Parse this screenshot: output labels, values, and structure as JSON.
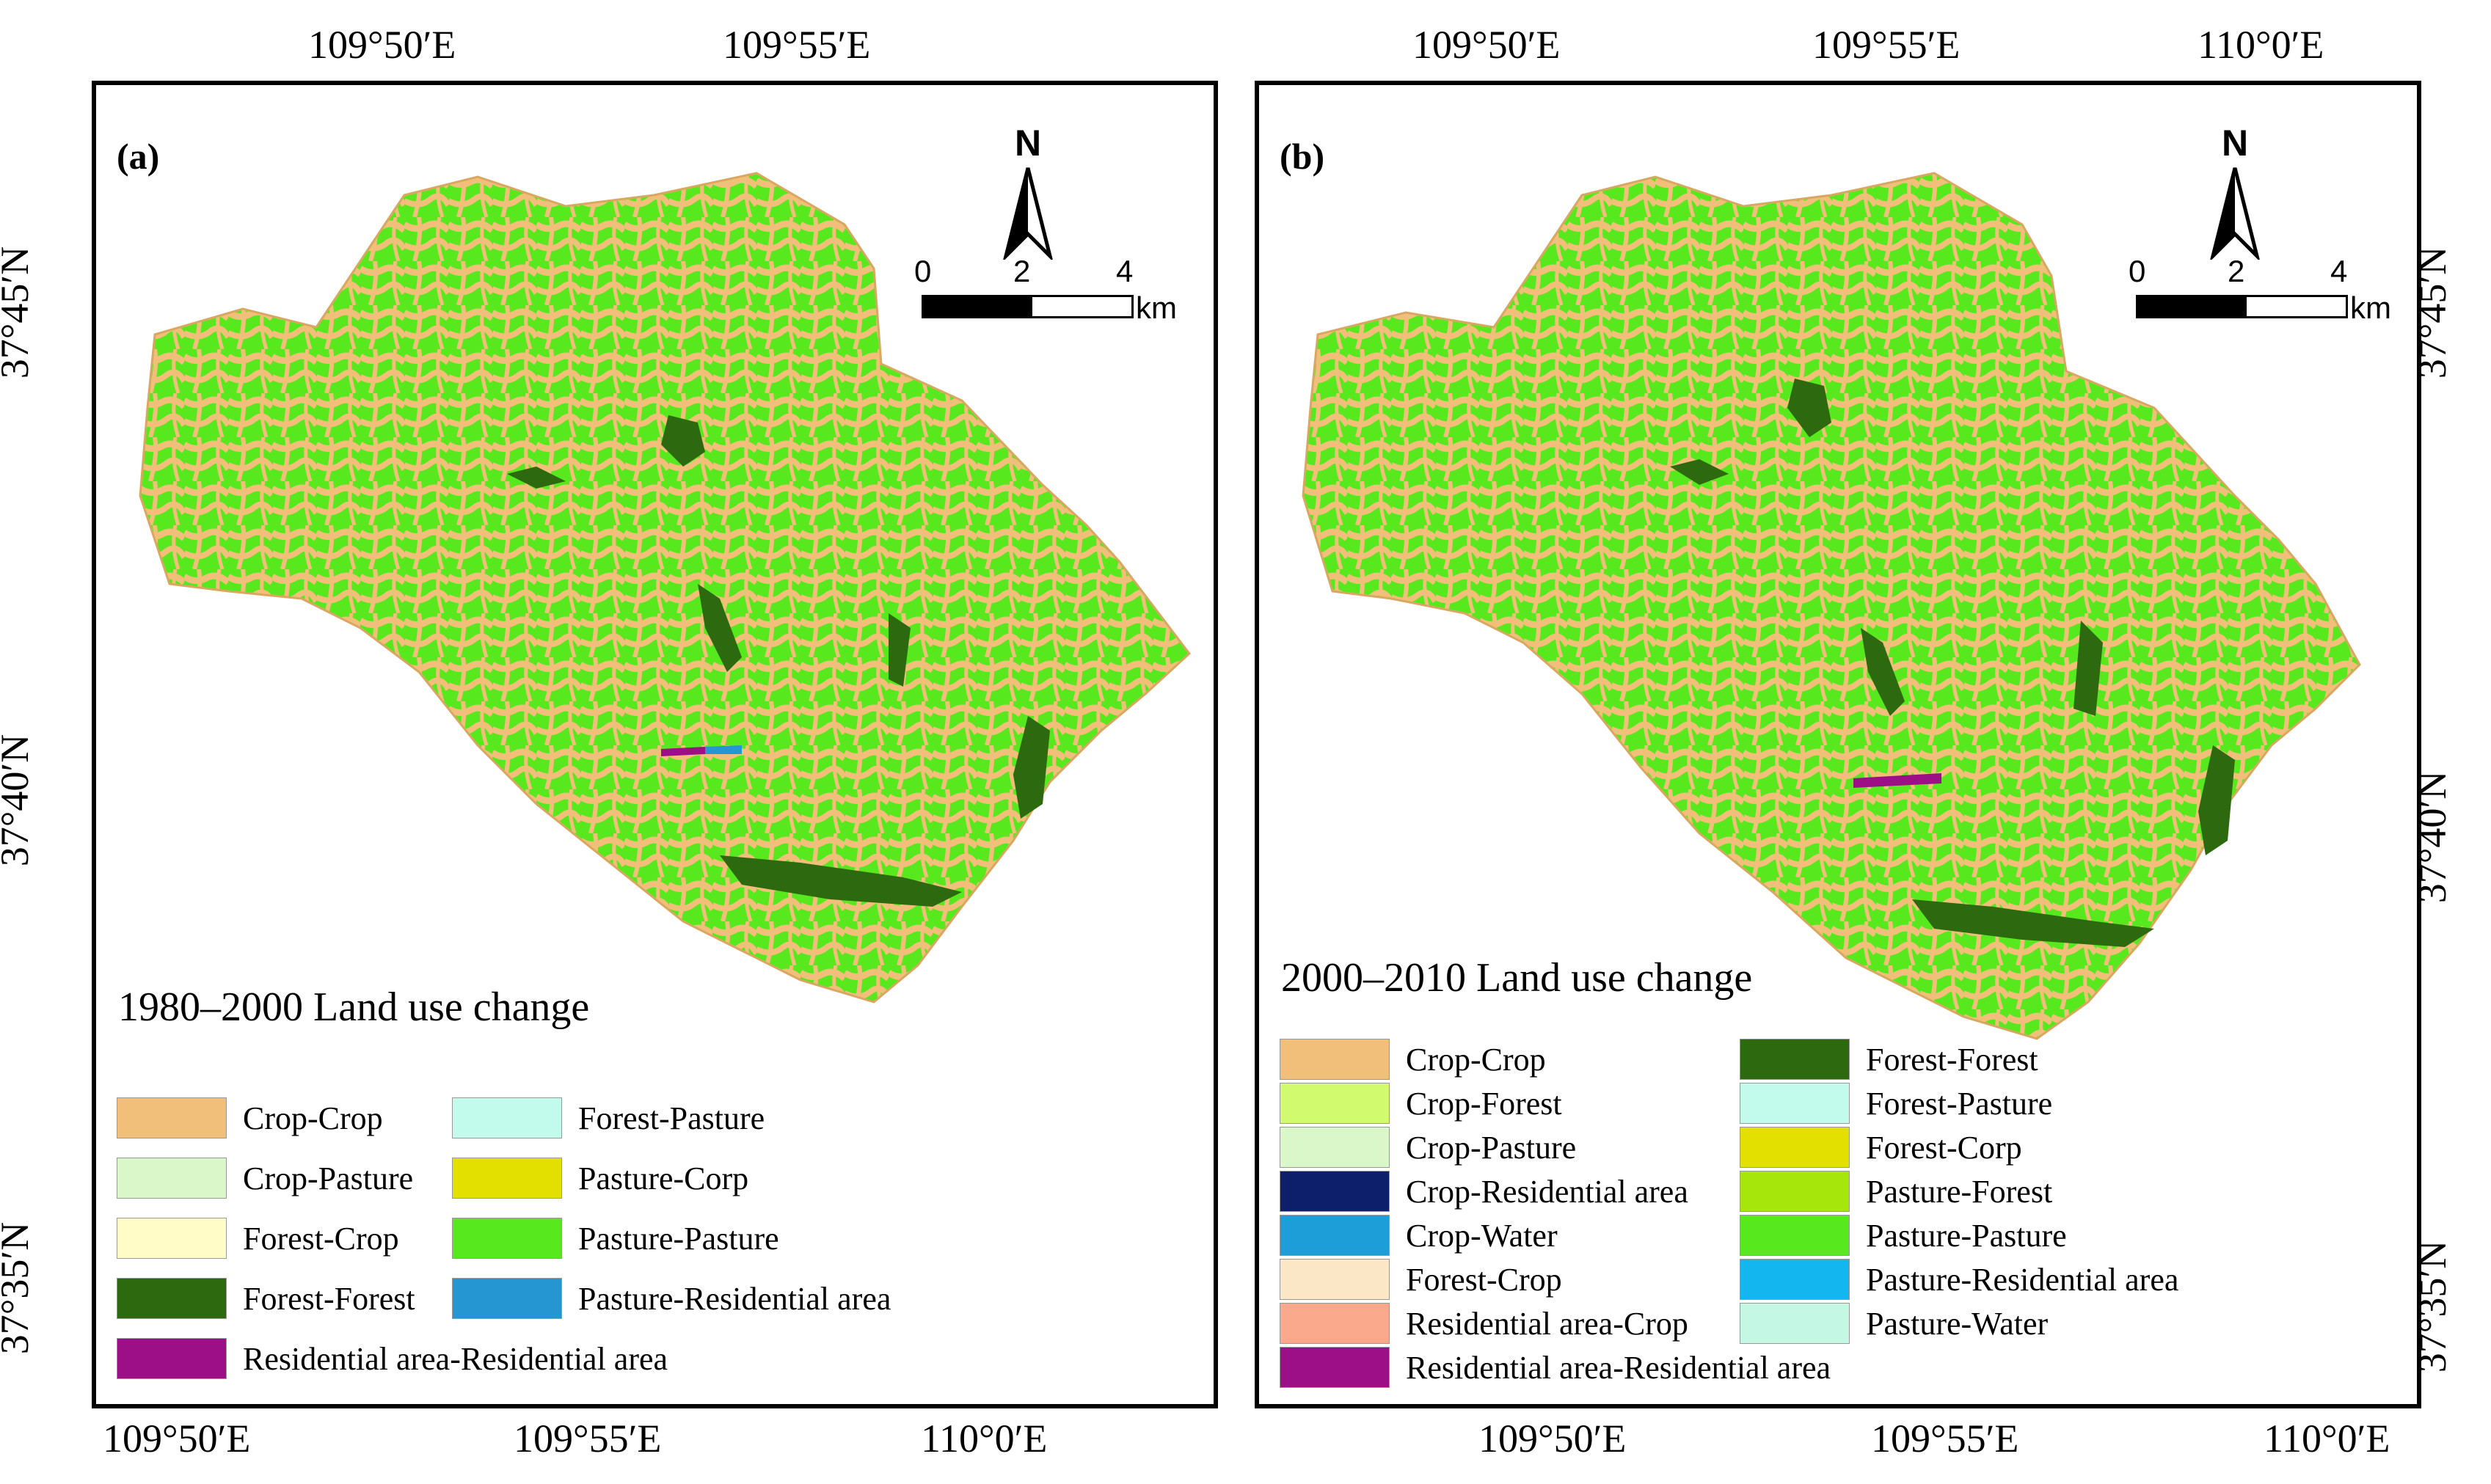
{
  "panel_a": {
    "label": "(a)",
    "title": "1980–2000 Land use change",
    "top_lon": [
      "109°50′E",
      "109°55′E"
    ],
    "bottom_lon": [
      "109°50′E",
      "109°55′E",
      "110°0′E"
    ],
    "left_lat": [
      "37°45′N",
      "37°40′N",
      "37°35′N"
    ],
    "north": "N",
    "scale": [
      "0",
      "2",
      "4"
    ],
    "scale_unit": "km",
    "legend": [
      {
        "label": "Crop-Crop",
        "color": "#f2bf7a"
      },
      {
        "label": "Crop-Pasture",
        "color": "#d9f7c8"
      },
      {
        "label": "Forest-Crop",
        "color": "#fffcc8"
      },
      {
        "label": "Forest-Forest",
        "color": "#2d6a0f"
      },
      {
        "label": "Residential area-Residential area",
        "color": "#9c0f86"
      },
      {
        "label": "Forest-Pasture",
        "color": "#c2faeb"
      },
      {
        "label": "Pasture-Corp",
        "color": "#e3e000"
      },
      {
        "label": "Pasture-Pasture",
        "color": "#57e81e"
      },
      {
        "label": "Pasture-Residential area",
        "color": "#2596d2"
      }
    ]
  },
  "panel_b": {
    "label": "(b)",
    "title": "2000–2010 Land use change",
    "top_lon": [
      "109°50′E",
      "109°55′E",
      "110°0′E"
    ],
    "bottom_lon": [
      "109°50′E",
      "109°55′E",
      "110°0′E"
    ],
    "right_lat": [
      "37°45′N",
      "37°40′N",
      "37°35′N"
    ],
    "north": "N",
    "scale": [
      "0",
      "2",
      "4"
    ],
    "scale_unit": "km",
    "legend": [
      {
        "label": "Crop-Crop",
        "color": "#f2bf7a"
      },
      {
        "label": "Crop-Forest",
        "color": "#d2fa6e"
      },
      {
        "label": "Crop-Pasture",
        "color": "#d9f7c8"
      },
      {
        "label": "Crop-Residential area",
        "color": "#0d1f6b"
      },
      {
        "label": "Crop-Water",
        "color": "#1e9ed8"
      },
      {
        "label": "Forest-Crop",
        "color": "#fbe6c5"
      },
      {
        "label": "Residential area-Crop",
        "color": "#fba98c"
      },
      {
        "label": "Residential area-Residential area",
        "color": "#9c0f86"
      },
      {
        "label": "Forest-Forest",
        "color": "#2d6a0f"
      },
      {
        "label": "Forest-Pasture",
        "color": "#c2faeb"
      },
      {
        "label": "Forest-Corp",
        "color": "#e3e000"
      },
      {
        "label": "Pasture-Forest",
        "color": "#a6e60a"
      },
      {
        "label": "Pasture-Pasture",
        "color": "#57e81e"
      },
      {
        "label": "Pasture-Residential area",
        "color": "#13b6ef"
      },
      {
        "label": "Pasture-Water",
        "color": "#c5f8e4"
      }
    ]
  }
}
